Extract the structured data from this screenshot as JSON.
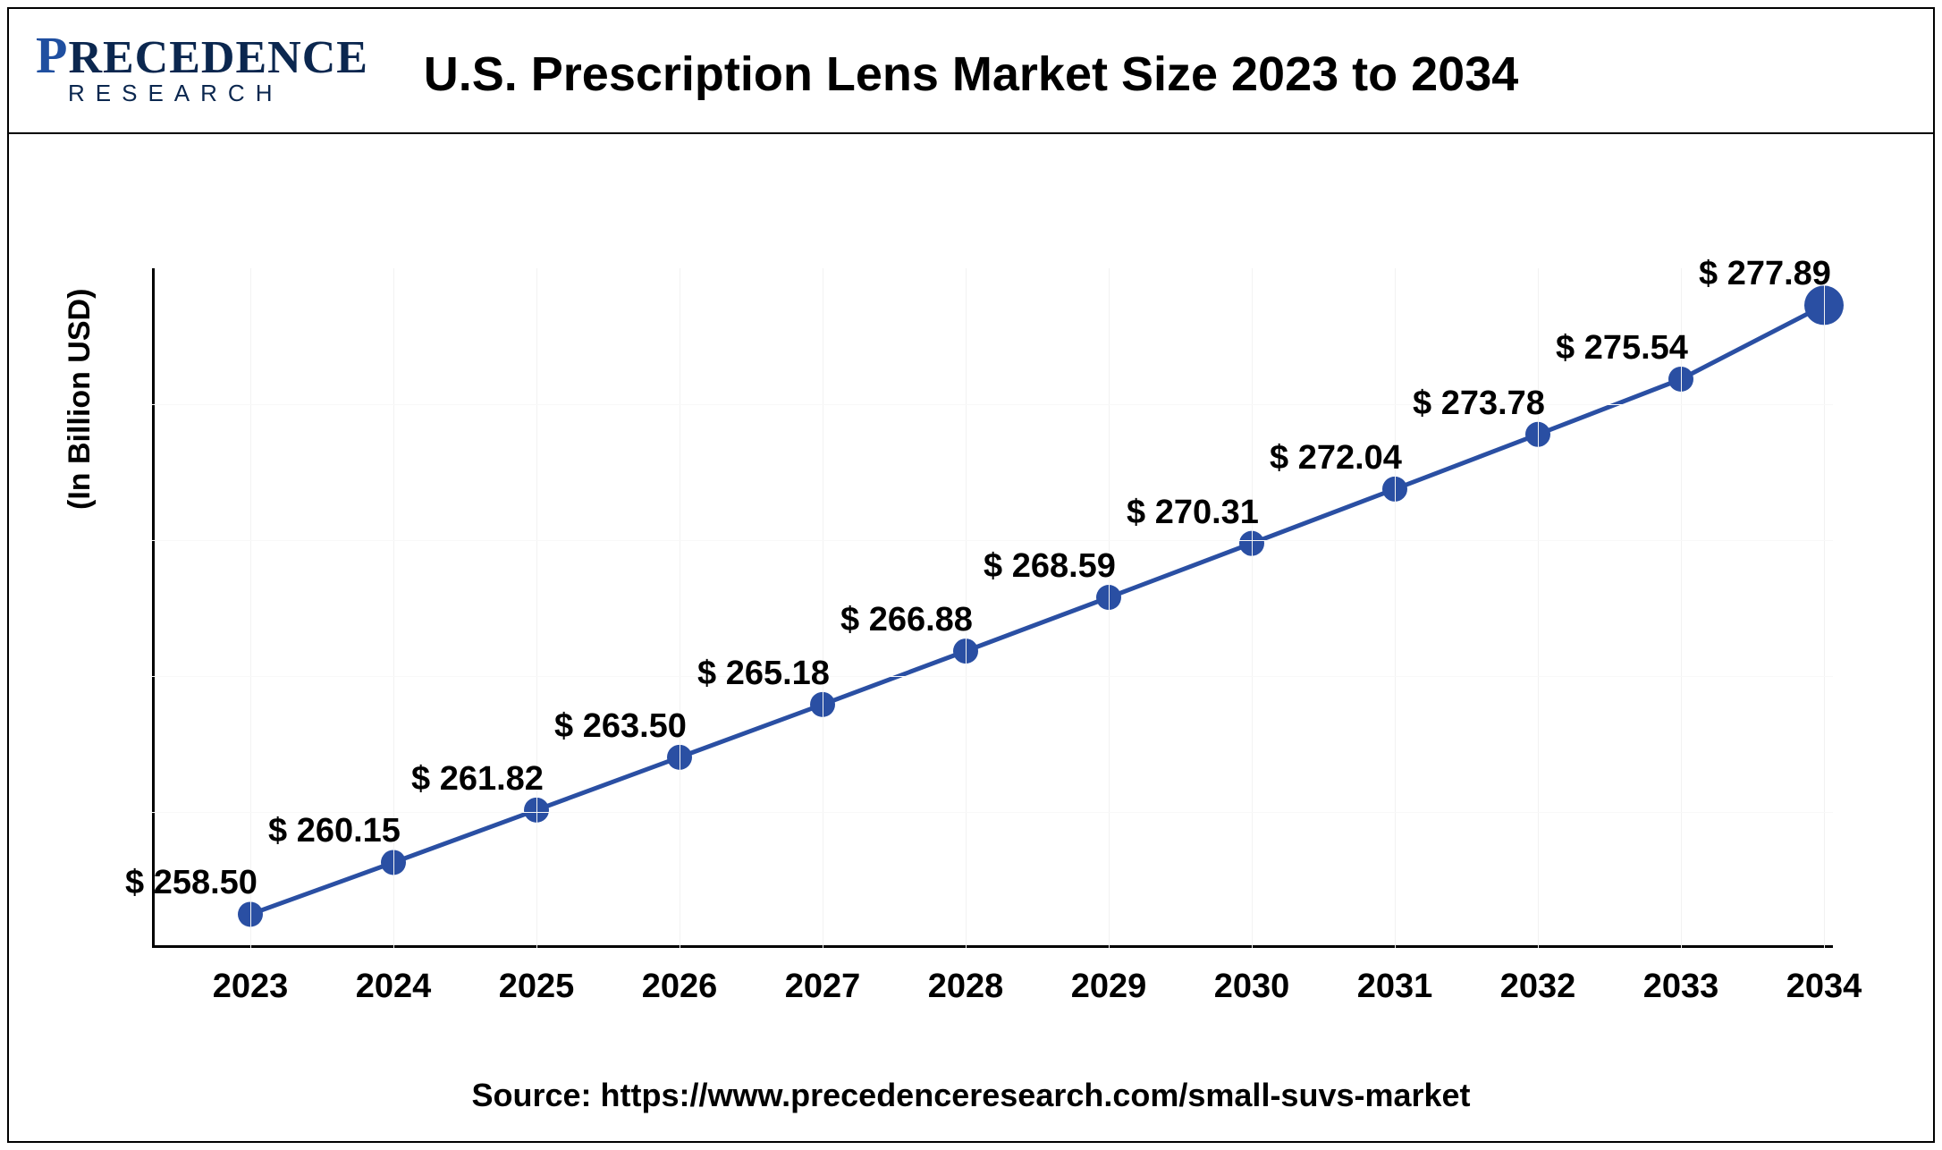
{
  "logo": {
    "brand_top": "PRECEDENCE",
    "brand_sub": "RESEARCH"
  },
  "title": "U.S. Prescription Lens Market Size 2023 to 2034",
  "ylabel": "(In Billion USD)",
  "source": "Source: https://www.precedenceresearch.com/small-suvs-market",
  "chart": {
    "type": "line",
    "line_color": "#2a4fa3",
    "marker_color": "#2a4fa3",
    "line_width": 5,
    "marker_radius": 14,
    "last_marker_radius": 22,
    "background_color": "#ffffff",
    "grid_color": "#f2f2f2",
    "axis_color": "#000000",
    "label_fontsize": 38,
    "title_fontsize": 54,
    "ylabel_fontsize": 34,
    "ylim": [
      258.0,
      278.5
    ],
    "categories": [
      "2023",
      "2024",
      "2025",
      "2026",
      "2027",
      "2028",
      "2029",
      "2030",
      "2031",
      "2032",
      "2033",
      "2034"
    ],
    "values": [
      258.5,
      260.15,
      261.82,
      263.5,
      265.18,
      266.88,
      268.59,
      270.31,
      272.04,
      273.78,
      275.54,
      277.89
    ],
    "labels_prefix": "$ ",
    "value_labels": [
      "$ 258.50",
      "$ 260.15",
      "$ 261.82",
      "$ 263.50",
      "$ 265.18",
      "$ 266.88",
      "$ 268.59",
      "$ 270.31",
      "$ 272.04",
      "$ 273.78",
      "$ 275.54",
      "$ 277.89"
    ]
  }
}
